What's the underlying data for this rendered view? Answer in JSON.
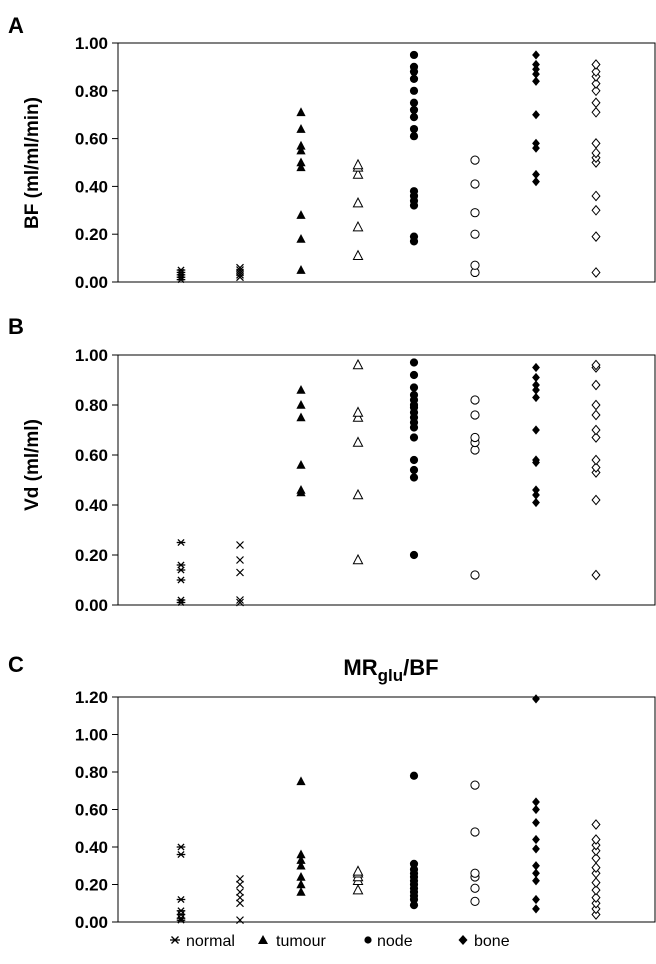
{
  "legend": {
    "normal": "normal",
    "tumour": "tumour",
    "node": "node",
    "bone": "bone"
  },
  "chart_data": [
    {
      "panel": "A",
      "type": "scatter",
      "title": "",
      "ylabel": "BF (ml/ml/min)",
      "ylim": [
        0,
        1.0
      ],
      "yticks": [
        "0.00",
        "0.20",
        "0.40",
        "0.60",
        "0.80",
        "1.00"
      ],
      "series": [
        {
          "group": "normal",
          "marker": "asterisk",
          "values": [
            0.01,
            0.02,
            0.03,
            0.04,
            0.05
          ]
        },
        {
          "group": "normal",
          "marker": "x",
          "values": [
            0.02,
            0.03,
            0.04,
            0.05,
            0.06
          ]
        },
        {
          "group": "tumour",
          "marker": "triangle-filled",
          "values": [
            0.05,
            0.18,
            0.28,
            0.48,
            0.5,
            0.55,
            0.57,
            0.64,
            0.71
          ]
        },
        {
          "group": "tumour",
          "marker": "triangle-open",
          "values": [
            0.11,
            0.23,
            0.33,
            0.45,
            0.48,
            0.49
          ]
        },
        {
          "group": "node",
          "marker": "circle-filled",
          "values": [
            0.17,
            0.19,
            0.32,
            0.34,
            0.36,
            0.38,
            0.61,
            0.64,
            0.69,
            0.72,
            0.75,
            0.8,
            0.85,
            0.88,
            0.9,
            0.95
          ]
        },
        {
          "group": "node",
          "marker": "circle-open",
          "values": [
            0.04,
            0.07,
            0.2,
            0.29,
            0.41,
            0.51
          ]
        },
        {
          "group": "bone",
          "marker": "diamond-filled",
          "values": [
            0.42,
            0.45,
            0.56,
            0.58,
            0.7,
            0.84,
            0.87,
            0.89,
            0.91,
            0.95
          ]
        },
        {
          "group": "bone",
          "marker": "diamond-open",
          "values": [
            0.04,
            0.19,
            0.3,
            0.36,
            0.5,
            0.52,
            0.54,
            0.58,
            0.71,
            0.75,
            0.8,
            0.83,
            0.86,
            0.88,
            0.91
          ]
        }
      ]
    },
    {
      "panel": "B",
      "type": "scatter",
      "title": "",
      "ylabel": "Vd  (ml/ml)",
      "ylim": [
        0,
        1.0
      ],
      "yticks": [
        "0.00",
        "0.20",
        "0.40",
        "0.60",
        "0.80",
        "1.00"
      ],
      "series": [
        {
          "group": "normal",
          "marker": "asterisk",
          "values": [
            0.01,
            0.02,
            0.1,
            0.14,
            0.16,
            0.25
          ]
        },
        {
          "group": "normal",
          "marker": "x",
          "values": [
            0.01,
            0.02,
            0.13,
            0.18,
            0.24
          ]
        },
        {
          "group": "tumour",
          "marker": "triangle-filled",
          "values": [
            0.45,
            0.46,
            0.56,
            0.75,
            0.8,
            0.86
          ]
        },
        {
          "group": "tumour",
          "marker": "triangle-open",
          "values": [
            0.18,
            0.44,
            0.65,
            0.75,
            0.77,
            0.96
          ]
        },
        {
          "group": "node",
          "marker": "circle-filled",
          "values": [
            0.2,
            0.51,
            0.54,
            0.58,
            0.67,
            0.71,
            0.73,
            0.75,
            0.77,
            0.79,
            0.8,
            0.82,
            0.84,
            0.87,
            0.92,
            0.97
          ]
        },
        {
          "group": "node",
          "marker": "circle-open",
          "values": [
            0.12,
            0.62,
            0.65,
            0.67,
            0.76,
            0.82
          ]
        },
        {
          "group": "bone",
          "marker": "diamond-filled",
          "values": [
            0.41,
            0.44,
            0.46,
            0.57,
            0.58,
            0.7,
            0.83,
            0.86,
            0.88,
            0.91,
            0.95
          ]
        },
        {
          "group": "bone",
          "marker": "diamond-open",
          "values": [
            0.12,
            0.42,
            0.53,
            0.55,
            0.58,
            0.67,
            0.7,
            0.76,
            0.8,
            0.88,
            0.95,
            0.96
          ]
        }
      ]
    },
    {
      "panel": "C",
      "type": "scatter",
      "title_main": "MR",
      "title_sub": "glu",
      "title_tail": "/BF",
      "ylabel": "",
      "ylim": [
        0,
        1.2
      ],
      "yticks": [
        "0.00",
        "0.20",
        "0.40",
        "0.60",
        "0.80",
        "1.00",
        "1.20"
      ],
      "series": [
        {
          "group": "normal",
          "marker": "asterisk",
          "values": [
            0.01,
            0.02,
            0.04,
            0.06,
            0.12,
            0.36,
            0.4
          ]
        },
        {
          "group": "normal",
          "marker": "x",
          "values": [
            0.01,
            0.1,
            0.13,
            0.16,
            0.2,
            0.23
          ]
        },
        {
          "group": "tumour",
          "marker": "triangle-filled",
          "values": [
            0.16,
            0.2,
            0.24,
            0.3,
            0.33,
            0.36,
            0.75
          ]
        },
        {
          "group": "tumour",
          "marker": "triangle-open",
          "values": [
            0.17,
            0.22,
            0.24,
            0.26,
            0.27
          ]
        },
        {
          "group": "node",
          "marker": "circle-filled",
          "values": [
            0.09,
            0.12,
            0.14,
            0.16,
            0.18,
            0.2,
            0.22,
            0.24,
            0.26,
            0.28,
            0.31,
            0.78
          ]
        },
        {
          "group": "node",
          "marker": "circle-open",
          "values": [
            0.11,
            0.18,
            0.24,
            0.26,
            0.48,
            0.73
          ]
        },
        {
          "group": "bone",
          "marker": "diamond-filled",
          "values": [
            0.07,
            0.12,
            0.22,
            0.26,
            0.3,
            0.39,
            0.44,
            0.53,
            0.6,
            0.64,
            1.19
          ]
        },
        {
          "group": "bone",
          "marker": "diamond-open",
          "values": [
            0.04,
            0.07,
            0.1,
            0.13,
            0.17,
            0.21,
            0.26,
            0.29,
            0.34,
            0.38,
            0.41,
            0.44,
            0.52
          ]
        }
      ]
    }
  ]
}
